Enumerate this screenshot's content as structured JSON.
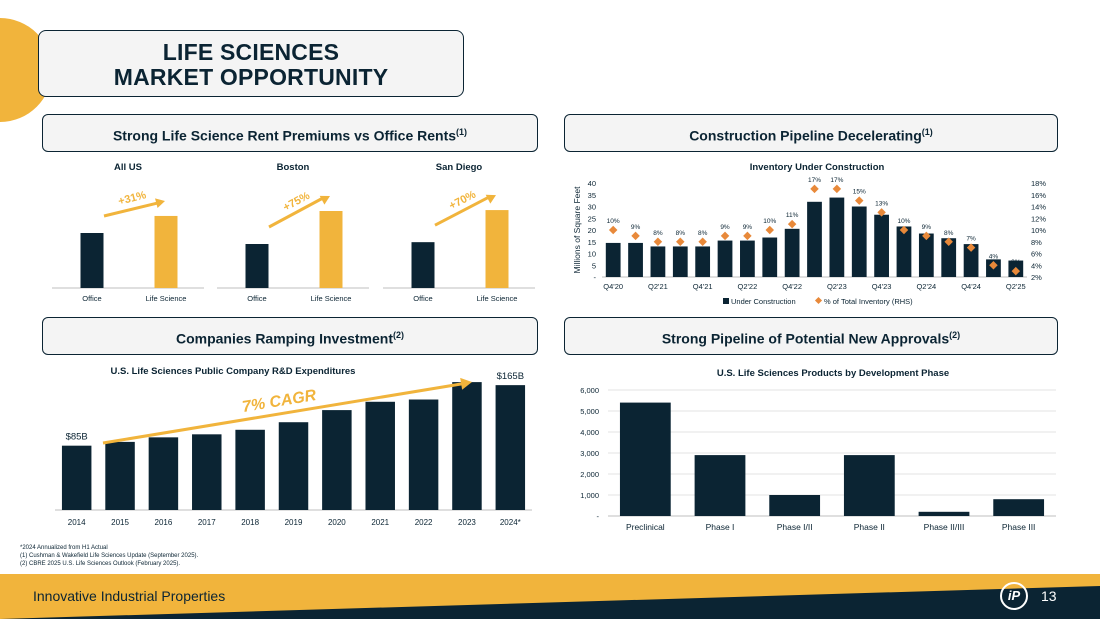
{
  "page": {
    "title_line1": "LIFE SCIENCES",
    "title_line2": "MARKET OPPORTUNITY",
    "company": "Innovative Industrial Properties",
    "page_number": "13",
    "logo_text": "iP",
    "colors": {
      "navy": "#0b2433",
      "gold": "#f1b43c",
      "orange": "#e8893a",
      "panel": "#f4f4f4",
      "axis": "#bfbfbf"
    }
  },
  "sections": {
    "rent": {
      "label": "Strong Life Science Rent Premiums vs Office Rents",
      "sup": "(1)"
    },
    "construction": {
      "label": "Construction Pipeline Decelerating",
      "sup": "(1)"
    },
    "investment": {
      "label": "Companies Ramping Investment",
      "sup": "(2)"
    },
    "approvals": {
      "label": "Strong Pipeline of Potential New Approvals",
      "sup": "(2)"
    }
  },
  "footnotes": [
    "*2024 Annualized from H1 Actual",
    "(1)   Cushman & Wakefield Life Sciences Update (September 2025).",
    "(2)   CBRE 2025 U.S. Life Sciences Outlook (February 2025)."
  ],
  "chart_data": [
    {
      "id": "rent_all_us",
      "type": "bar",
      "title": "All US",
      "categories": [
        "Office",
        "Life Science"
      ],
      "values": [
        100,
        131
      ],
      "annotation": "+31%",
      "ylim": [
        0,
        200
      ]
    },
    {
      "id": "rent_boston",
      "type": "bar",
      "title": "Boston",
      "categories": [
        "Office",
        "Life Science"
      ],
      "values": [
        100,
        175
      ],
      "annotation": "+75%",
      "ylim": [
        0,
        250
      ]
    },
    {
      "id": "rent_san_diego",
      "type": "bar",
      "title": "San Diego",
      "categories": [
        "Office",
        "Life Science"
      ],
      "values": [
        100,
        170
      ],
      "annotation": "+70%",
      "ylim": [
        0,
        240
      ]
    },
    {
      "id": "construction",
      "type": "bar",
      "title": "Inventory Under Construction",
      "ylabel": "Millions of Square Feet",
      "ylim": [
        0,
        40
      ],
      "yticks": [
        "-",
        "5",
        "10",
        "15",
        "20",
        "25",
        "30",
        "35",
        "40"
      ],
      "y2lim": [
        2,
        18
      ],
      "y2ticks": [
        "2%",
        "4%",
        "6%",
        "8%",
        "10%",
        "12%",
        "14%",
        "16%",
        "18%"
      ],
      "x_tick_labels": [
        "Q4'20",
        "Q2'21",
        "Q4'21",
        "Q2'22",
        "Q4'22",
        "Q2'23",
        "Q4'23",
        "Q2'24",
        "Q4'24",
        "Q2'25"
      ],
      "series": [
        {
          "name": "Under Construction",
          "type": "bar",
          "values": [
            14.5,
            14.5,
            13.0,
            13.0,
            13.0,
            15.5,
            15.5,
            16.8,
            20.5,
            32.0,
            33.8,
            30.0,
            26.5,
            21.5,
            18.5,
            16.5,
            14.0,
            7.5,
            7.0
          ]
        },
        {
          "name": "% of Total Inventory (RHS)",
          "type": "scatter",
          "values": [
            10,
            9,
            8,
            8,
            8,
            9,
            9,
            10,
            11,
            17,
            17,
            15,
            13,
            10,
            9,
            8,
            7,
            4,
            3
          ],
          "labels": [
            "10%",
            "9%",
            "8%",
            "8%",
            "8%",
            "9%",
            "9%",
            "10%",
            "11%",
            "17%",
            "17%",
            "15%",
            "13%",
            "10%",
            "9%",
            "8%",
            "7%",
            "4%",
            "3%"
          ]
        }
      ]
    },
    {
      "id": "rd_expenditures",
      "type": "bar",
      "title": "U.S. Life Sciences Public Company R&D Expenditures",
      "categories": [
        "2014",
        "2015",
        "2016",
        "2017",
        "2018",
        "2019",
        "2020",
        "2021",
        "2022",
        "2023",
        "2024*"
      ],
      "values": [
        85,
        90,
        96,
        100,
        106,
        116,
        132,
        143,
        146,
        169,
        165
      ],
      "ylim": [
        0,
        185
      ],
      "first_label": "$85B",
      "last_label": "$165B",
      "annotation": "7% CAGR"
    },
    {
      "id": "development_phase",
      "type": "bar",
      "title": "U.S. Life Sciences Products by Development Phase",
      "categories": [
        "Preclinical",
        "Phase I",
        "Phase I/II",
        "Phase II",
        "Phase II/III",
        "Phase III"
      ],
      "values": [
        5400,
        2900,
        1000,
        2900,
        200,
        800
      ],
      "ylim": [
        0,
        6000
      ],
      "yticks": [
        "-",
        "1,000",
        "2,000",
        "3,000",
        "4,000",
        "5,000",
        "6,000"
      ]
    }
  ]
}
